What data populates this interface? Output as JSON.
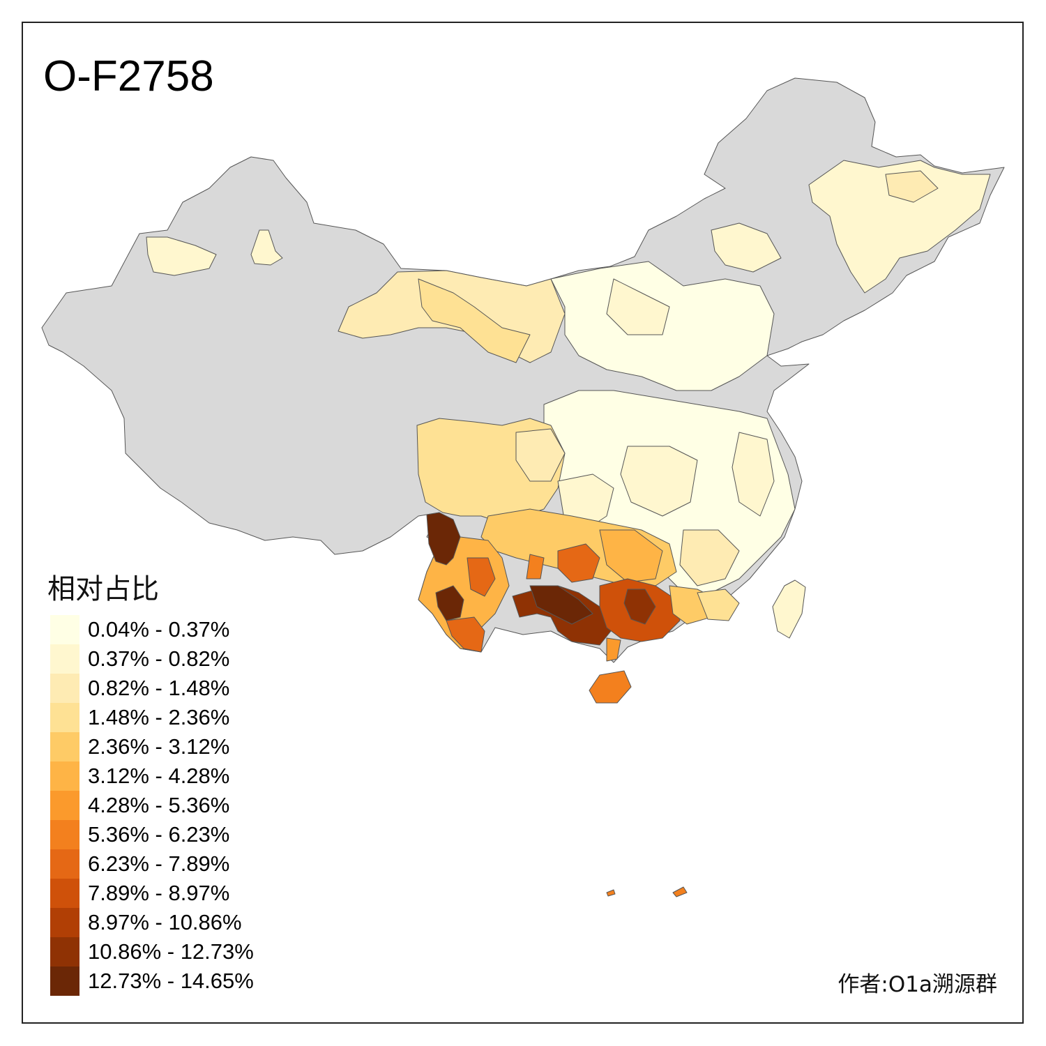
{
  "title": "O-F2758",
  "legend": {
    "title": "相对占比",
    "classes": [
      {
        "label": "0.04% - 0.37%",
        "color": "#ffffe5"
      },
      {
        "label": "0.37% - 0.82%",
        "color": "#fff7cf"
      },
      {
        "label": "0.82% - 1.48%",
        "color": "#feebb3"
      },
      {
        "label": "1.48% - 2.36%",
        "color": "#fee194"
      },
      {
        "label": "2.36% - 3.12%",
        "color": "#fecb66"
      },
      {
        "label": "3.12% - 4.28%",
        "color": "#feb446"
      },
      {
        "label": "4.28% - 5.36%",
        "color": "#fb9a2c"
      },
      {
        "label": "5.36% - 6.23%",
        "color": "#f3801e"
      },
      {
        "label": "6.23% - 7.89%",
        "color": "#e56815"
      },
      {
        "label": "7.89% - 8.97%",
        "color": "#cf510a"
      },
      {
        "label": "8.97% - 10.86%",
        "color": "#b13f05"
      },
      {
        "label": "10.86% - 12.73%",
        "color": "#8f3204"
      },
      {
        "label": "12.73% - 14.65%",
        "color": "#6b2706"
      }
    ]
  },
  "no_data_color": "#d9d9d9",
  "credit": "作者:O1a溯源群"
}
